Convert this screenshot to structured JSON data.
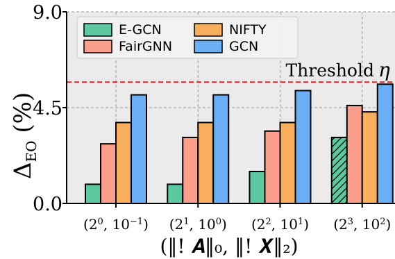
{
  "chart_data": {
    "type": "bar",
    "title": "",
    "xlabel": "(‖! 𝑨‖₀, ‖! 𝑿‖₂)",
    "ylabel": "Δ",
    "ylabel_sub": "EO",
    "ylabel_unit": "(%)",
    "ylim": [
      0,
      9
    ],
    "yticks": [
      "0.0",
      "4.5",
      "9.0"
    ],
    "grid": true,
    "legend_position": "top-left",
    "categories": [
      {
        "base": "(2",
        "sup1": "0",
        "mid": ", 10",
        "sup2": "−1",
        "end": ")"
      },
      {
        "base": "(2",
        "sup1": "1",
        "mid": ", 10",
        "sup2": "0",
        "end": ")"
      },
      {
        "base": "(2",
        "sup1": "2",
        "mid": ", 10",
        "sup2": "1",
        "end": ")"
      },
      {
        "base": "(2",
        "sup1": "3",
        "mid": ", 10",
        "sup2": "2",
        "end": ")"
      }
    ],
    "series": [
      {
        "name": "E-GCN",
        "color": "#5cc9a1",
        "values": [
          0.9,
          0.9,
          1.5,
          3.1
        ],
        "hatched_index": 3
      },
      {
        "name": "FairGNN",
        "color": "#fb9f8c",
        "values": [
          2.8,
          3.1,
          3.4,
          4.6
        ]
      },
      {
        "name": "NIFTY",
        "color": "#f9ae5b",
        "values": [
          3.8,
          3.8,
          3.8,
          4.3
        ]
      },
      {
        "name": "GCN",
        "color": "#6aaef5",
        "values": [
          5.1,
          5.1,
          5.3,
          5.6
        ]
      }
    ],
    "threshold": {
      "value": 5.7,
      "label": "Threshold",
      "symbol": "η",
      "color": "#e8201f"
    }
  }
}
